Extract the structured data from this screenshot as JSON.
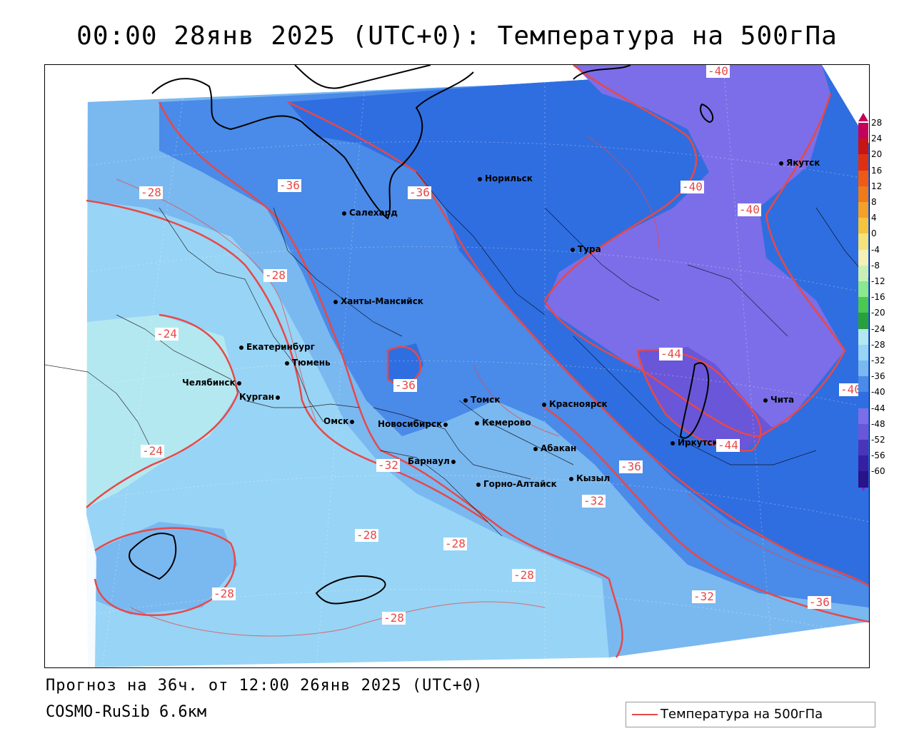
{
  "title": "00:00 28янв 2025 (UTC+0): Температура на 500гПа",
  "forecast_line": "Прогноз на 36ч. от 12:00 26янв 2025 (UTC+0)",
  "model_line": "COSMO-RuSib 6.6км",
  "legend_label": "Температура на 500гПа",
  "colors": {
    "contour": "#e84848",
    "boundary": "#000000"
  },
  "colorbar": {
    "ticks": [
      "28",
      "24",
      "20",
      "16",
      "12",
      "8",
      "4",
      "0",
      "-4",
      "-8",
      "-12",
      "-16",
      "-20",
      "-24",
      "-28",
      "-32",
      "-36",
      "-40",
      "-44",
      "-48",
      "-52",
      "-56",
      "-60"
    ],
    "colors": [
      "#c4005a",
      "#c81414",
      "#e03010",
      "#f05a14",
      "#f07a18",
      "#f5a028",
      "#f5c43c",
      "#f5e278",
      "#f5f0b4",
      "#c8f0b4",
      "#8ce88c",
      "#4cc850",
      "#28a03c",
      "#b4e8f0",
      "#98d4f5",
      "#7ab8f0",
      "#4a8ae8",
      "#2f6ee0",
      "#7c6ee8",
      "#6a56d8",
      "#4a34b8",
      "#3420a0",
      "#2a1288"
    ]
  },
  "cities": [
    {
      "name": "Норильск"
    },
    {
      "name": "Салехард"
    },
    {
      "name": "Тура"
    },
    {
      "name": "Якутск"
    },
    {
      "name": "Ханты-Мансийск"
    },
    {
      "name": "Екатеринбург"
    },
    {
      "name": "Тюмень"
    },
    {
      "name": "Челябинск"
    },
    {
      "name": "Курган"
    },
    {
      "name": "Омск"
    },
    {
      "name": "Новосибирск"
    },
    {
      "name": "Томск"
    },
    {
      "name": "Кемерово"
    },
    {
      "name": "Красноярск"
    },
    {
      "name": "Барнаул"
    },
    {
      "name": "Абакан"
    },
    {
      "name": "Горно-Алтайск"
    },
    {
      "name": "Кызыл"
    },
    {
      "name": "Иркутск"
    },
    {
      "name": "Чита"
    }
  ],
  "contour_labels": [
    {
      "text": "-40"
    },
    {
      "text": "-36"
    },
    {
      "text": "-36"
    },
    {
      "text": "-28"
    },
    {
      "text": "-40"
    },
    {
      "text": "-40"
    },
    {
      "text": "-28"
    },
    {
      "text": "-24"
    },
    {
      "text": "-44"
    },
    {
      "text": "-36"
    },
    {
      "text": "-40"
    },
    {
      "text": "-24"
    },
    {
      "text": "-32"
    },
    {
      "text": "-36"
    },
    {
      "text": "-44"
    },
    {
      "text": "-32"
    },
    {
      "text": "-28"
    },
    {
      "text": "-28"
    },
    {
      "text": "-28"
    },
    {
      "text": "-28"
    },
    {
      "text": "-32"
    },
    {
      "text": "-36"
    },
    {
      "text": "-28"
    }
  ]
}
